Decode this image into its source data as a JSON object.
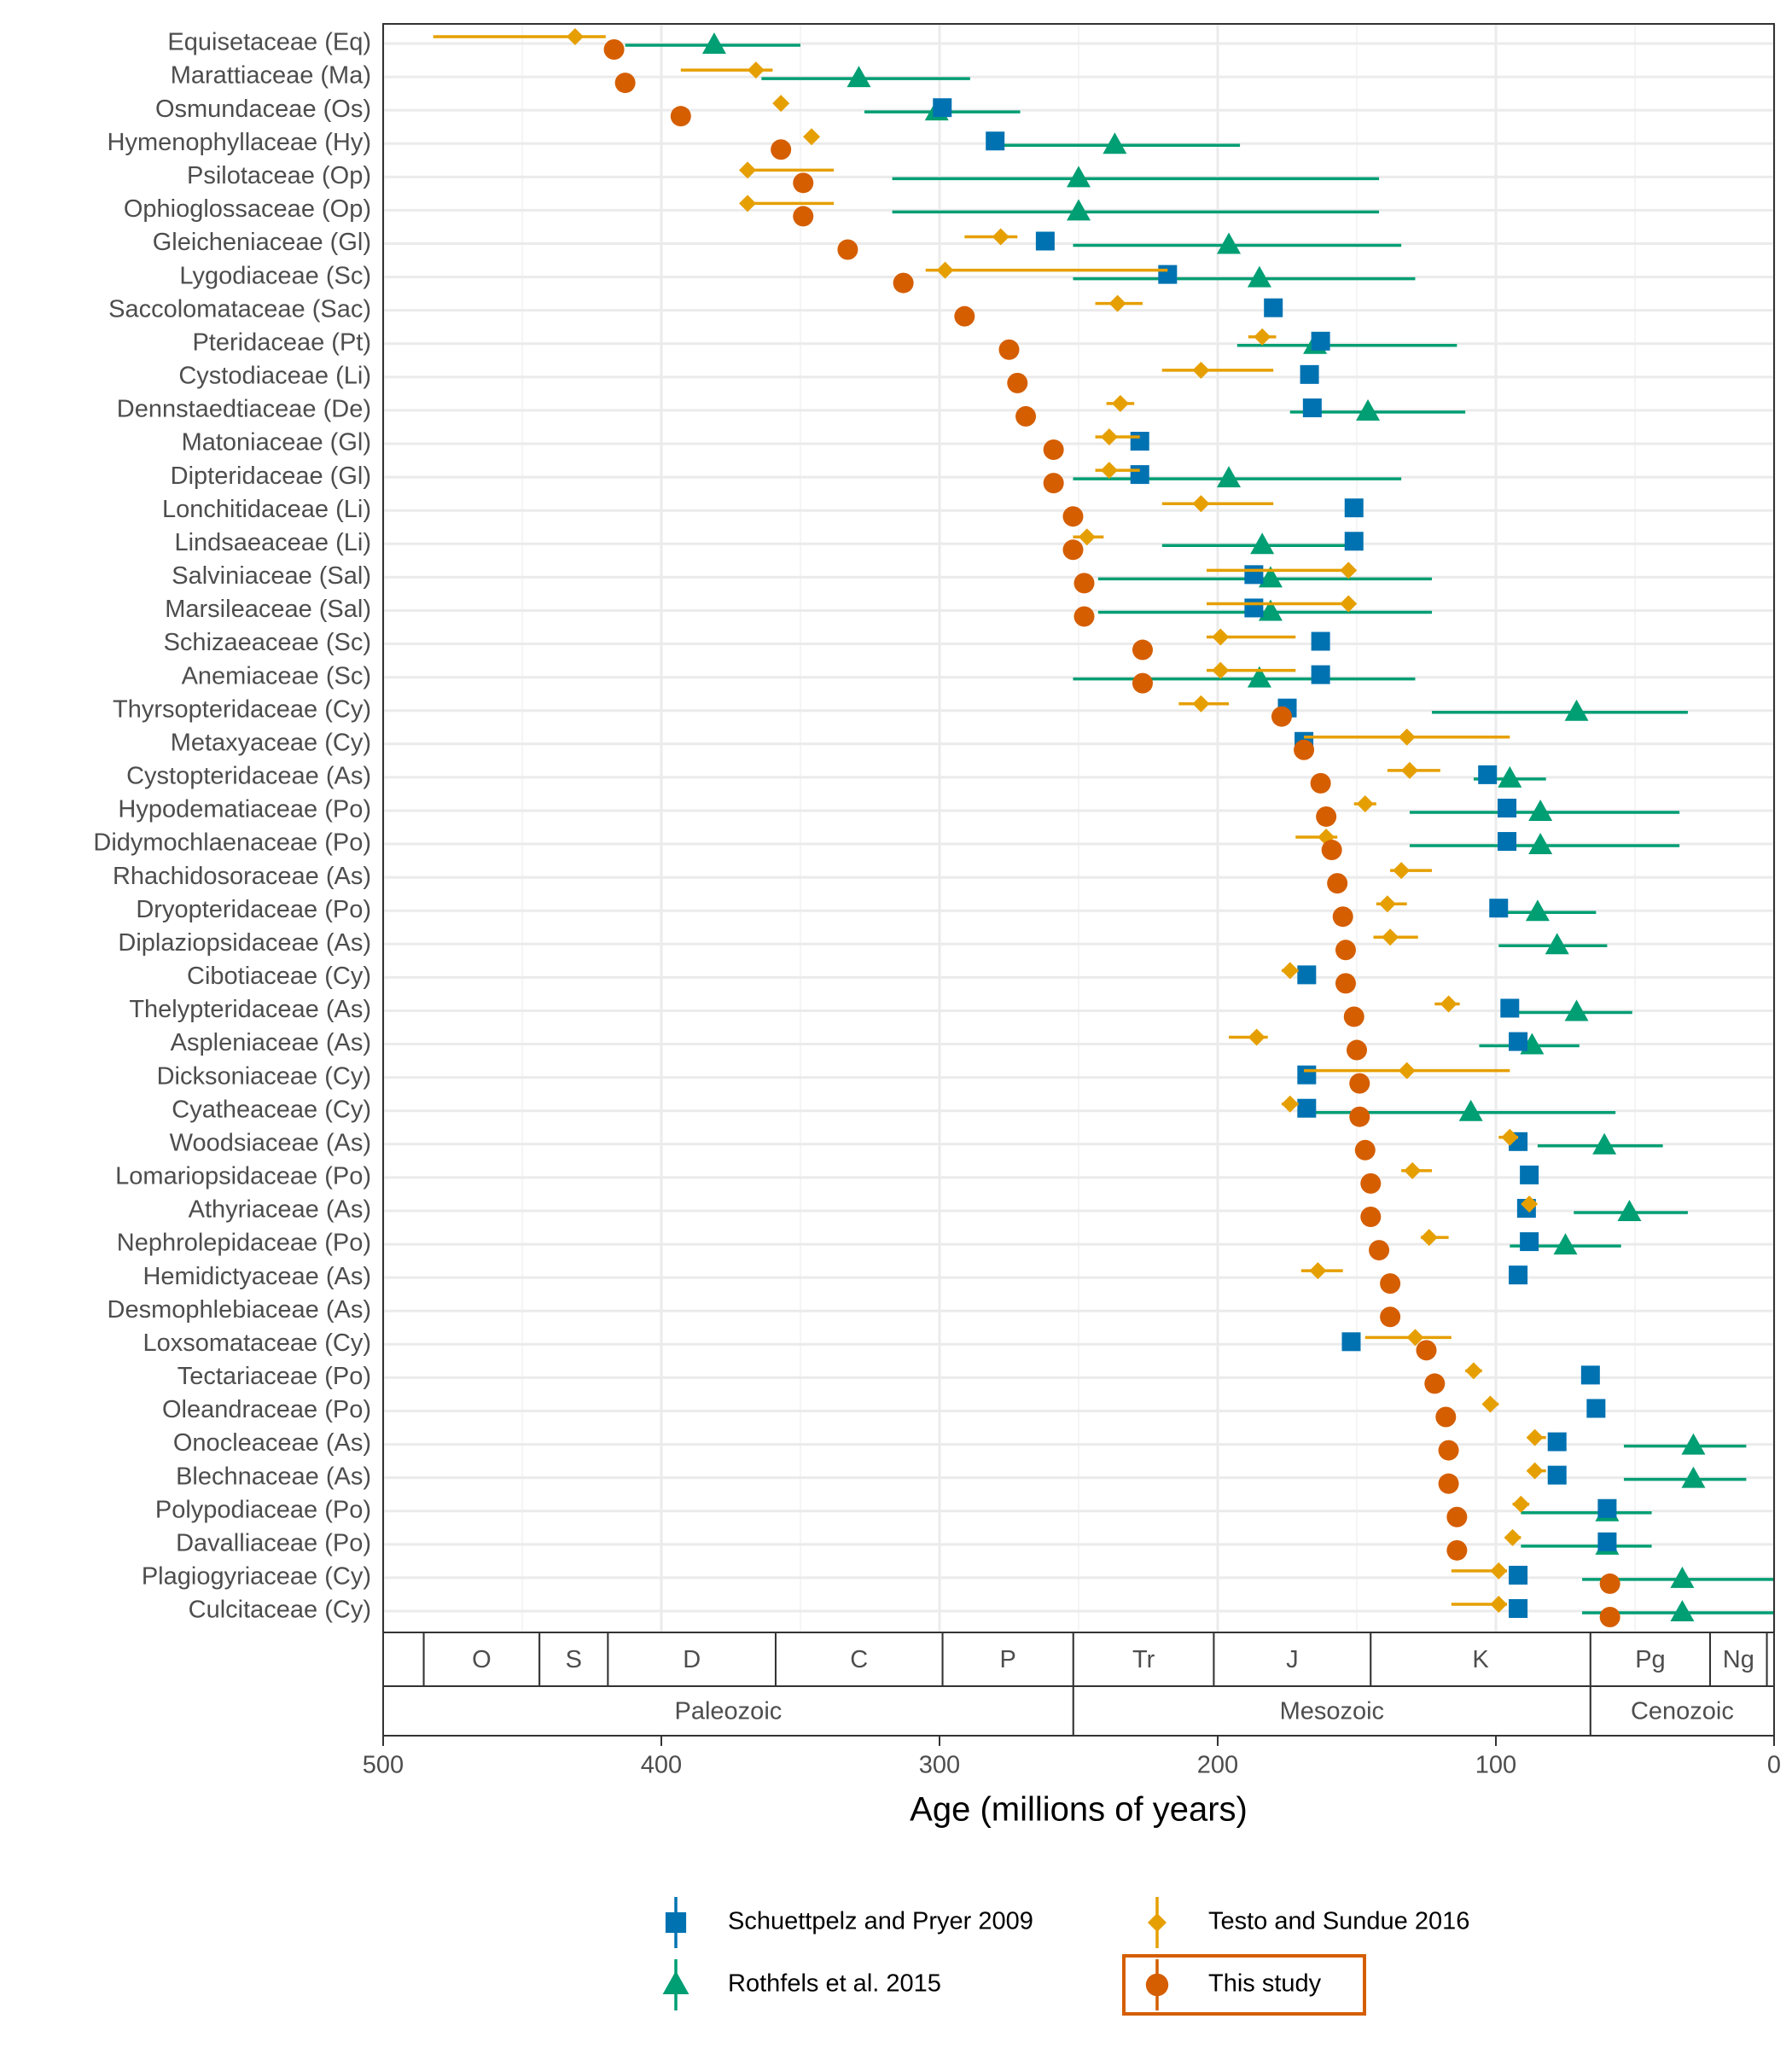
{
  "chart_data": {
    "type": "interval-dot",
    "xlabel": "Age (millions of years)",
    "xlim": [
      500,
      0
    ],
    "xticks": [
      500,
      400,
      300,
      200,
      100,
      0
    ],
    "xminor": [
      450,
      350,
      250,
      150,
      50
    ],
    "grid": true,
    "legend": "bottom",
    "categories": [
      "Equisetaceae (Eq)",
      "Marattiaceae (Ma)",
      "Osmundaceae (Os)",
      "Hymenophyllaceae (Hy)",
      "Psilotaceae (Op)",
      "Ophioglossaceae (Op)",
      "Gleicheniaceae (Gl)",
      "Lygodiaceae (Sc)",
      "Saccolomataceae (Sac)",
      "Pteridaceae (Pt)",
      "Cystodiaceae (Li)",
      "Dennstaedtiaceae (De)",
      "Matoniaceae (Gl)",
      "Dipteridaceae (Gl)",
      "Lonchitidaceae (Li)",
      "Lindsaeaceae (Li)",
      "Salviniaceae (Sal)",
      "Marsileaceae (Sal)",
      "Schizaeaceae (Sc)",
      "Anemiaceae (Sc)",
      "Thyrsopteridaceae (Cy)",
      "Metaxyaceae (Cy)",
      "Cystopteridaceae (As)",
      "Hypodematiaceae (Po)",
      "Didymochlaenaceae (Po)",
      "Rhachidosoraceae (As)",
      "Dryopteridaceae (Po)",
      "Diplaziopsidaceae (As)",
      "Cibotiaceae (Cy)",
      "Thelypteridaceae (As)",
      "Aspleniaceae (As)",
      "Dicksoniaceae (Cy)",
      "Cyatheaceae (Cy)",
      "Woodsiaceae (As)",
      "Lomariopsidaceae (Po)",
      "Athyriaceae (As)",
      "Nephrolepidaceae (Po)",
      "Hemidictyaceae (As)",
      "Desmophlebiaceae (As)",
      "Loxsomataceae (Cy)",
      "Tectariaceae (Po)",
      "Oleandraceae (Po)",
      "Onocleaceae (As)",
      "Blechnaceae (As)",
      "Polypodiaceae (Po)",
      "Davalliaceae (Po)",
      "Plagiogyriaceae (Cy)",
      "Culcitaceae (Cy)"
    ],
    "series": [
      {
        "name": "Schuettpelz and Pryer 2009",
        "color": "#0072B2",
        "shape": "square",
        "values": [
          null,
          null,
          299,
          280,
          null,
          null,
          262,
          218,
          180,
          163,
          167,
          166,
          228,
          228,
          151,
          151,
          187,
          187,
          163,
          163,
          175,
          169,
          103,
          96,
          96,
          null,
          99,
          null,
          168,
          95,
          92,
          168,
          168,
          92,
          88,
          89,
          88,
          92,
          null,
          152,
          66,
          64,
          78,
          78,
          60,
          60,
          92,
          92
        ]
      },
      {
        "name": "Testo and Sundue 2016",
        "color": "#E69F00",
        "shape": "diamond",
        "values": [
          431,
          366,
          357,
          346,
          369,
          369,
          278,
          298,
          236,
          184,
          206,
          235,
          239,
          239,
          206,
          247,
          153,
          153,
          199,
          199,
          206,
          132,
          131,
          147,
          161,
          134,
          139,
          138,
          174,
          117,
          186,
          132,
          174,
          95,
          130,
          88,
          124,
          164,
          null,
          129,
          108,
          102,
          86,
          86,
          91,
          94,
          99,
          99
        ],
        "lower": [
          420,
          360,
          null,
          null,
          338,
          338,
          272,
          218,
          227,
          179,
          180,
          230,
          228,
          228,
          180,
          241,
          151,
          151,
          172,
          172,
          196,
          95,
          120,
          143,
          157,
          123,
          132,
          128,
          171,
          113,
          182,
          95,
          171,
          92,
          123,
          null,
          117,
          155,
          null,
          116,
          105,
          99,
          82,
          82,
          88,
          91,
          96,
          96
        ],
        "upper": [
          482,
          393,
          null,
          null,
          371,
          371,
          291,
          305,
          244,
          189,
          220,
          240,
          244,
          244,
          220,
          252,
          204,
          204,
          204,
          204,
          214,
          169,
          139,
          151,
          172,
          138,
          143,
          144,
          177,
          122,
          196,
          169,
          177,
          99,
          134,
          null,
          127,
          170,
          null,
          147,
          111,
          104,
          88,
          88,
          94,
          96,
          116,
          116
        ]
      },
      {
        "name": "Rothfels et al. 2015",
        "color": "#009E73",
        "shape": "triangle",
        "values": [
          381,
          329,
          301,
          237,
          250,
          250,
          196,
          185,
          null,
          165,
          null,
          146,
          null,
          196,
          null,
          184,
          181,
          181,
          null,
          185,
          71,
          null,
          95,
          84,
          84,
          null,
          85,
          78,
          null,
          71,
          87,
          null,
          109,
          61,
          null,
          52,
          75,
          null,
          null,
          null,
          null,
          null,
          29,
          29,
          60,
          60,
          33,
          33
        ],
        "lower": [
          350,
          289,
          271,
          192,
          142,
          142,
          134,
          129,
          null,
          114,
          null,
          111,
          null,
          134,
          null,
          151,
          123,
          123,
          null,
          129,
          31,
          null,
          82,
          34,
          34,
          null,
          64,
          60,
          null,
          51,
          70,
          null,
          57,
          40,
          null,
          31,
          55,
          null,
          null,
          null,
          null,
          null,
          10,
          10,
          44,
          44,
          0,
          0
        ],
        "upper": [
          413,
          364,
          327,
          280,
          317,
          317,
          252,
          252,
          null,
          193,
          null,
          174,
          null,
          252,
          null,
          220,
          243,
          243,
          null,
          252,
          123,
          null,
          108,
          131,
          131,
          null,
          99,
          99,
          null,
          95,
          106,
          null,
          168,
          85,
          null,
          72,
          95,
          null,
          null,
          null,
          null,
          null,
          54,
          54,
          91,
          91,
          69,
          69
        ]
      },
      {
        "name": "This study",
        "color": "#D55E00",
        "shape": "circle",
        "highlighted": true,
        "values": [
          417,
          413,
          393,
          357,
          349,
          349,
          333,
          313,
          291,
          275,
          272,
          269,
          259,
          259,
          252,
          252,
          248,
          248,
          227,
          227,
          177,
          169,
          163,
          161,
          159,
          157,
          155,
          154,
          154,
          151,
          150,
          149,
          149,
          147,
          145,
          145,
          142,
          138,
          138,
          125,
          122,
          118,
          117,
          117,
          114,
          114,
          59,
          59
        ]
      }
    ],
    "periods": [
      {
        "label": null,
        "start": 541,
        "end": 485.4
      },
      {
        "label": "O",
        "start": 485.4,
        "end": 443.8
      },
      {
        "label": "S",
        "start": 443.8,
        "end": 419.2
      },
      {
        "label": "D",
        "start": 419.2,
        "end": 358.9
      },
      {
        "label": "C",
        "start": 358.9,
        "end": 298.9
      },
      {
        "label": "P",
        "start": 298.9,
        "end": 251.9
      },
      {
        "label": "Tr",
        "start": 251.9,
        "end": 201.4
      },
      {
        "label": "J",
        "start": 201.4,
        "end": 145
      },
      {
        "label": "K",
        "start": 145,
        "end": 66
      },
      {
        "label": "Pg",
        "start": 66,
        "end": 23
      },
      {
        "label": "Ng",
        "start": 23,
        "end": 2.58
      },
      {
        "label": null,
        "start": 2.58,
        "end": 0
      }
    ],
    "eras": [
      {
        "label": "Paleozoic",
        "start": 541,
        "end": 251.9
      },
      {
        "label": "Mesozoic",
        "start": 251.9,
        "end": 66
      },
      {
        "label": "Cenozoic",
        "start": 66,
        "end": 0
      }
    ]
  }
}
